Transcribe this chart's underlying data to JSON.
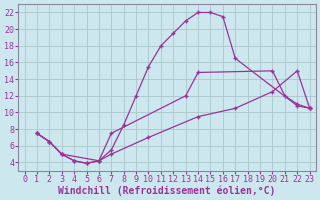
{
  "xlabel": "Windchill (Refroidissement éolien,°C)",
  "bg_color": "#cce8ee",
  "line_color": "#993399",
  "grid_color": "#aac8cc",
  "xlim": [
    -0.5,
    23.5
  ],
  "ylim": [
    3.0,
    23.0
  ],
  "xticks": [
    0,
    1,
    2,
    3,
    4,
    5,
    6,
    7,
    8,
    9,
    10,
    11,
    12,
    13,
    14,
    15,
    16,
    17,
    18,
    19,
    20,
    21,
    22,
    23
  ],
  "yticks": [
    4,
    6,
    8,
    10,
    12,
    14,
    16,
    18,
    20,
    22
  ],
  "line1_x": [
    1,
    2,
    3,
    4,
    5,
    6,
    7,
    8,
    9,
    10,
    11,
    12,
    13,
    14,
    15,
    16,
    17,
    22,
    23
  ],
  "line1_y": [
    7.5,
    6.5,
    5.0,
    4.2,
    3.9,
    4.2,
    5.5,
    8.5,
    12.0,
    15.5,
    18.0,
    19.5,
    21.0,
    22.0,
    22.0,
    21.5,
    16.5,
    10.8,
    10.5
  ],
  "line2_x": [
    1,
    2,
    3,
    6,
    7,
    13,
    14,
    20,
    21,
    22,
    23
  ],
  "line2_y": [
    7.5,
    6.5,
    5.0,
    4.2,
    7.5,
    12.0,
    14.8,
    15.0,
    12.0,
    11.0,
    10.5
  ],
  "line3_x": [
    1,
    2,
    3,
    4,
    5,
    6,
    7,
    10,
    14,
    17,
    20,
    22,
    23
  ],
  "line3_y": [
    7.5,
    6.5,
    5.0,
    4.2,
    3.9,
    4.2,
    5.0,
    7.0,
    9.5,
    10.5,
    12.5,
    15.0,
    10.5
  ],
  "tick_fontsize": 6,
  "xlabel_fontsize": 7
}
